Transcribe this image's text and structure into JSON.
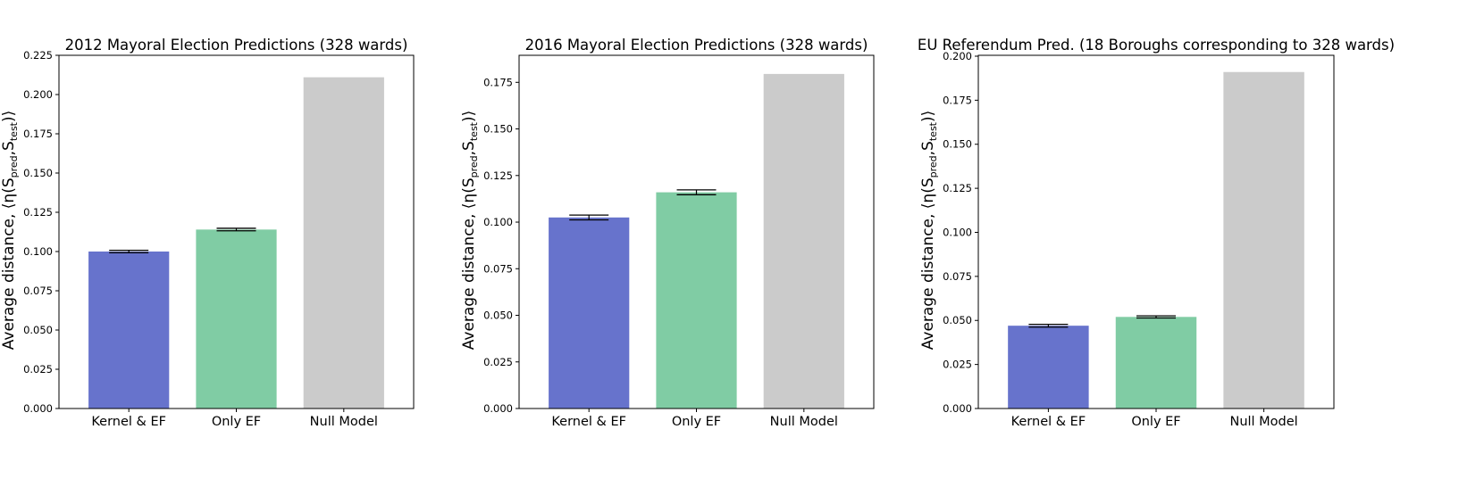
{
  "chart_data": [
    {
      "type": "bar",
      "title": "2012 Mayoral Election Predictions (328 wards)",
      "ylabel": "Average distance, ⟨η(S_pred,S_test)⟩",
      "categories": [
        "Kernel & EF",
        "Only EF",
        "Null Model"
      ],
      "values": [
        0.1,
        0.114,
        0.211
      ],
      "errors": [
        0.0008,
        0.0008,
        0
      ],
      "colors": [
        "#6773cc",
        "#80cca4",
        "#cbcbcb"
      ],
      "ylim": [
        0,
        0.225
      ],
      "yticks": [
        0.0,
        0.025,
        0.05,
        0.075,
        0.1,
        0.125,
        0.15,
        0.175,
        0.2,
        0.225
      ],
      "ytick_labels": [
        "0.000",
        "0.025",
        "0.050",
        "0.075",
        "0.100",
        "0.125",
        "0.150",
        "0.175",
        "0.200",
        "0.225"
      ]
    },
    {
      "type": "bar",
      "title": "2016 Mayoral Election Predictions (328 wards)",
      "ylabel": "Average distance, ⟨η(S_pred,S_test)⟩",
      "categories": [
        "Kernel & EF",
        "Only EF",
        "Null Model"
      ],
      "values": [
        0.1025,
        0.116,
        0.1795
      ],
      "errors": [
        0.0013,
        0.0013,
        0
      ],
      "colors": [
        "#6773cc",
        "#80cca4",
        "#cbcbcb"
      ],
      "ylim": [
        0,
        0.1895
      ],
      "yticks": [
        0.0,
        0.025,
        0.05,
        0.075,
        0.1,
        0.125,
        0.15,
        0.175
      ],
      "ytick_labels": [
        "0.000",
        "0.025",
        "0.050",
        "0.075",
        "0.100",
        "0.125",
        "0.150",
        "0.175"
      ]
    },
    {
      "type": "bar",
      "title": "EU Referendum Pred. (18 Boroughs corresponding to 328 wards)",
      "ylabel": "Average distance, ⟨η(S_pred,S_test)⟩",
      "categories": [
        "Kernel & EF",
        "Only EF",
        "Null Model"
      ],
      "values": [
        0.047,
        0.052,
        0.191
      ],
      "errors": [
        0.0008,
        0.0006,
        0
      ],
      "colors": [
        "#6773cc",
        "#80cca4",
        "#cbcbcb"
      ],
      "ylim": [
        0,
        0.2005
      ],
      "yticks": [
        0.0,
        0.025,
        0.05,
        0.075,
        0.1,
        0.125,
        0.15,
        0.175,
        0.2
      ],
      "ytick_labels": [
        "0.000",
        "0.025",
        "0.050",
        "0.075",
        "0.100",
        "0.125",
        "0.150",
        "0.175",
        "0.200"
      ]
    }
  ]
}
